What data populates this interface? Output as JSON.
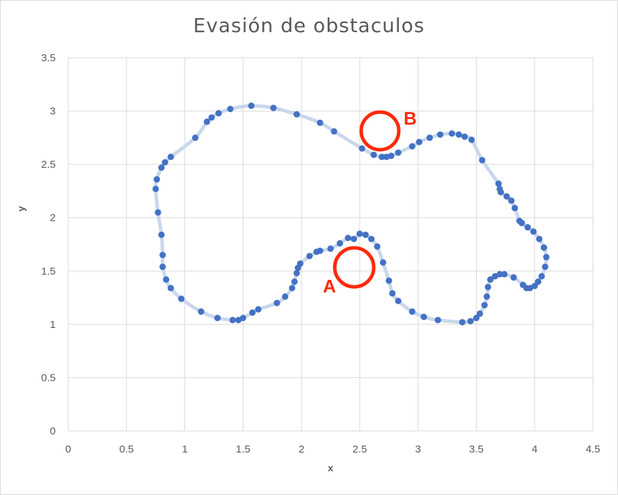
{
  "chart_data": {
    "type": "scatter",
    "title": "Evasión de obstaculos",
    "xlabel": "x",
    "ylabel": "y",
    "xlim": [
      0,
      4.5
    ],
    "ylim": [
      0,
      3.5
    ],
    "x_ticks": [
      "0",
      "0.5",
      "1",
      "1.5",
      "2",
      "2.5",
      "3",
      "3.5",
      "4",
      "4.5"
    ],
    "y_ticks": [
      "0",
      "0.5",
      "1",
      "1.5",
      "2",
      "2.5",
      "3",
      "3.5"
    ],
    "grid": true,
    "legend": "none",
    "marker_color": "#4472c4",
    "line_color": "#c9d7ec",
    "points": [
      [
        2.45,
        1.8
      ],
      [
        2.5,
        1.85
      ],
      [
        2.55,
        1.84
      ],
      [
        2.6,
        1.8
      ],
      [
        2.65,
        1.73
      ],
      [
        2.7,
        1.58
      ],
      [
        2.75,
        1.41
      ],
      [
        2.78,
        1.29
      ],
      [
        2.83,
        1.22
      ],
      [
        2.95,
        1.12
      ],
      [
        3.05,
        1.07
      ],
      [
        3.17,
        1.04
      ],
      [
        3.38,
        1.02
      ],
      [
        3.45,
        1.03
      ],
      [
        3.5,
        1.06
      ],
      [
        3.53,
        1.1
      ],
      [
        3.57,
        1.18
      ],
      [
        3.59,
        1.26
      ],
      [
        3.6,
        1.35
      ],
      [
        3.62,
        1.42
      ],
      [
        3.66,
        1.45
      ],
      [
        3.7,
        1.47
      ],
      [
        3.74,
        1.47
      ],
      [
        3.82,
        1.44
      ],
      [
        3.9,
        1.37
      ],
      [
        3.93,
        1.34
      ],
      [
        3.96,
        1.34
      ],
      [
        4.0,
        1.36
      ],
      [
        4.03,
        1.4
      ],
      [
        4.06,
        1.45
      ],
      [
        4.09,
        1.54
      ],
      [
        4.1,
        1.63
      ],
      [
        4.08,
        1.72
      ],
      [
        4.04,
        1.8
      ],
      [
        3.99,
        1.87
      ],
      [
        3.94,
        1.91
      ],
      [
        3.89,
        1.95
      ],
      [
        3.87,
        1.97
      ],
      [
        3.83,
        2.09
      ],
      [
        3.8,
        2.16
      ],
      [
        3.76,
        2.2
      ],
      [
        3.71,
        2.24
      ],
      [
        3.7,
        2.27
      ],
      [
        3.69,
        2.32
      ],
      [
        3.55,
        2.54
      ],
      [
        3.46,
        2.73
      ],
      [
        3.4,
        2.76
      ],
      [
        3.35,
        2.78
      ],
      [
        3.29,
        2.79
      ],
      [
        3.19,
        2.78
      ],
      [
        3.1,
        2.75
      ],
      [
        3.01,
        2.71
      ],
      [
        2.95,
        2.67
      ],
      [
        2.83,
        2.61
      ],
      [
        2.77,
        2.58
      ],
      [
        2.73,
        2.57
      ],
      [
        2.69,
        2.57
      ],
      [
        2.62,
        2.59
      ],
      [
        2.52,
        2.65
      ],
      [
        2.28,
        2.81
      ],
      [
        2.16,
        2.89
      ],
      [
        1.96,
        2.97
      ],
      [
        1.76,
        3.03
      ],
      [
        1.57,
        3.05
      ],
      [
        1.39,
        3.02
      ],
      [
        1.29,
        2.98
      ],
      [
        1.23,
        2.94
      ],
      [
        1.19,
        2.9
      ],
      [
        1.09,
        2.75
      ],
      [
        0.88,
        2.57
      ],
      [
        0.83,
        2.52
      ],
      [
        0.8,
        2.47
      ],
      [
        0.76,
        2.36
      ],
      [
        0.75,
        2.27
      ],
      [
        0.77,
        2.05
      ],
      [
        0.8,
        1.84
      ],
      [
        0.81,
        1.65
      ],
      [
        0.81,
        1.54
      ],
      [
        0.84,
        1.42
      ],
      [
        0.88,
        1.34
      ],
      [
        0.97,
        1.24
      ],
      [
        1.14,
        1.12
      ],
      [
        1.28,
        1.06
      ],
      [
        1.41,
        1.04
      ],
      [
        1.46,
        1.04
      ],
      [
        1.5,
        1.06
      ],
      [
        1.58,
        1.11
      ],
      [
        1.63,
        1.14
      ],
      [
        1.79,
        1.2
      ],
      [
        1.86,
        1.26
      ],
      [
        1.92,
        1.34
      ],
      [
        1.94,
        1.4
      ],
      [
        1.96,
        1.48
      ],
      [
        1.97,
        1.53
      ],
      [
        1.99,
        1.57
      ],
      [
        2.07,
        1.64
      ],
      [
        2.13,
        1.68
      ],
      [
        2.16,
        1.69
      ],
      [
        2.25,
        1.71
      ],
      [
        2.33,
        1.76
      ],
      [
        2.4,
        1.81
      ]
    ]
  },
  "annotations": {
    "a_label": "A",
    "b_label": "B",
    "color": "#ff2a0a"
  }
}
